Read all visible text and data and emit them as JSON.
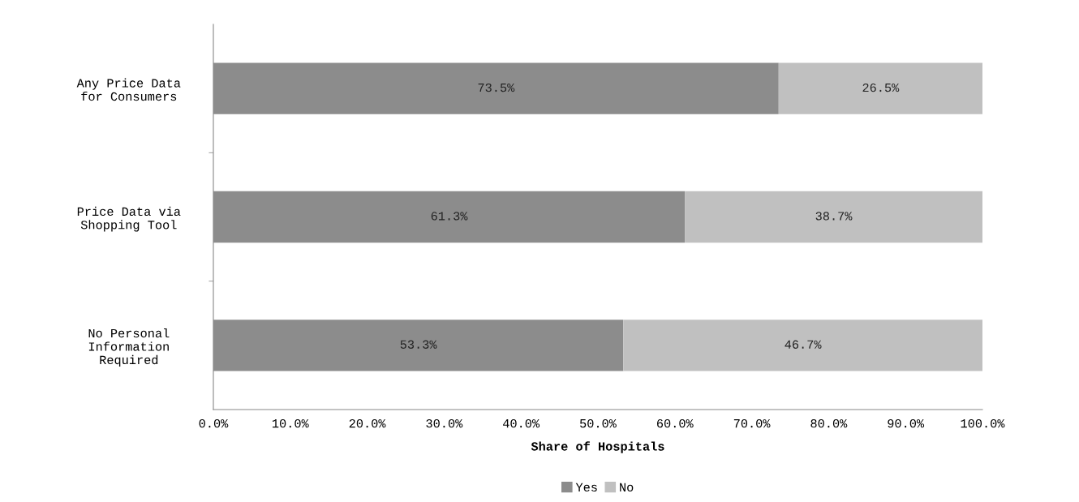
{
  "chart_data": {
    "type": "bar",
    "orientation": "horizontal",
    "stacked": true,
    "xlabel": "Share of Hospitals",
    "categories": [
      "Any Price Data\nfor Consumers",
      "Price Data via\nShopping Tool",
      "No Personal\nInformation\nRequired"
    ],
    "series": [
      {
        "name": "Yes",
        "color": "#8c8c8c",
        "values": [
          73.5,
          61.3,
          53.3
        ],
        "value_labels": [
          "73.5%",
          "61.3%",
          "53.3%"
        ]
      },
      {
        "name": "No",
        "color": "#c0c0c0",
        "values": [
          26.5,
          38.7,
          46.7
        ],
        "value_labels": [
          "26.5%",
          "38.7%",
          "46.7%"
        ]
      }
    ],
    "xlim": [
      0,
      100
    ],
    "xticks": [
      {
        "value": 0,
        "label": "0.0%"
      },
      {
        "value": 10,
        "label": "10.0%"
      },
      {
        "value": 20,
        "label": "20.0%"
      },
      {
        "value": 30,
        "label": "30.0%"
      },
      {
        "value": 40,
        "label": "40.0%"
      },
      {
        "value": 50,
        "label": "50.0%"
      },
      {
        "value": 60,
        "label": "60.0%"
      },
      {
        "value": 70,
        "label": "70.0%"
      },
      {
        "value": 80,
        "label": "80.0%"
      },
      {
        "value": 90,
        "label": "90.0%"
      },
      {
        "value": 100,
        "label": "100.0%"
      }
    ],
    "grid": false,
    "legend": "bottom"
  }
}
